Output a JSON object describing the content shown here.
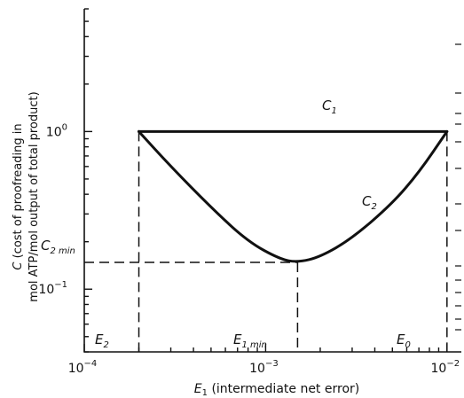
{
  "chart_data": {
    "type": "line",
    "xscale": "log",
    "yscale": "log",
    "xlim": [
      0.0001,
      0.012
    ],
    "ylim": [
      0.04,
      6
    ],
    "xlabel": "E1 (intermediate net error)",
    "xlabel_main": "E",
    "xlabel_sub": "1",
    "xlabel_rest": " (intermediate net error)",
    "ylabel_line1": "C (cost of proofreading in",
    "ylabel_line2": "mol ATP/mol output of total product)",
    "ylabel_line1_main": "C",
    "ylabel_line1_rest": " (cost of proofreading in",
    "xticks": [
      {
        "value": 0.0001,
        "base": "10",
        "exp": "−4"
      },
      {
        "value": 0.001,
        "base": "10",
        "exp": "−3"
      },
      {
        "value": 0.01,
        "base": "10",
        "exp": "−2"
      }
    ],
    "yticks": [
      {
        "value": 1,
        "base": "10",
        "exp": "0"
      },
      {
        "value": 0.1,
        "base": "10",
        "exp": "−1"
      }
    ],
    "series": [
      {
        "name": "C1",
        "x": [
          0.0002,
          0.01
        ],
        "y": [
          1.0,
          1.0
        ]
      },
      {
        "name": "C2",
        "x": [
          0.0002,
          0.0003,
          0.0005,
          0.0008,
          0.0012,
          0.0015,
          0.002,
          0.003,
          0.005,
          0.007,
          0.01
        ],
        "y": [
          1.0,
          0.6,
          0.33,
          0.2,
          0.155,
          0.148,
          0.16,
          0.21,
          0.35,
          0.55,
          1.0
        ]
      }
    ],
    "curve_labels": [
      {
        "main": "C",
        "sub": "1"
      },
      {
        "main": "C",
        "sub": "2"
      }
    ],
    "annotations": {
      "c2min": {
        "main": "C",
        "sub": "2 min",
        "x": 0.0015,
        "y": 0.148
      },
      "e1min": {
        "main": "E",
        "sub": "1 min"
      },
      "e2": {
        "main": "E",
        "sub": "2"
      },
      "e0": {
        "main": "E",
        "sub": "0"
      }
    },
    "grid": false
  }
}
